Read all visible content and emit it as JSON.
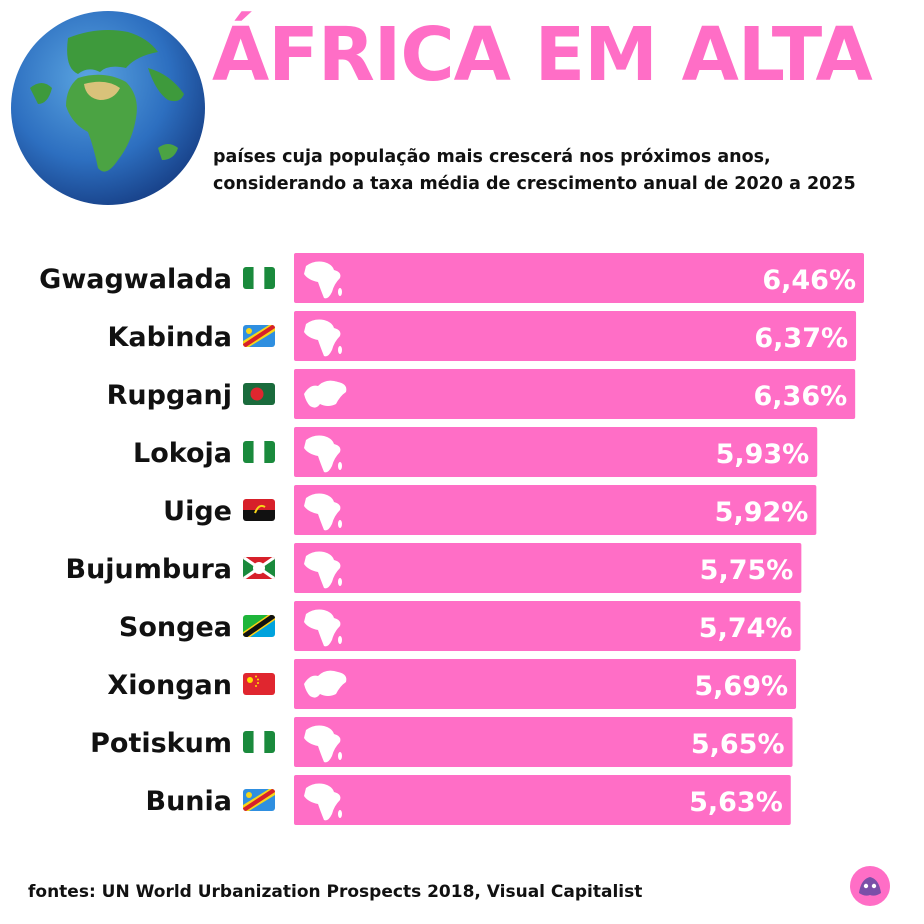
{
  "title": "ÁFRICA EM ALTA",
  "subtitle_lines": [
    "países cuja população mais crescerá nos próximos anos,",
    "considerando a taxa média de crescimento anual de 2020 a 2025"
  ],
  "source": "fontes: UN World Urbanization Prospects 2018, Visual Capitalist",
  "colors": {
    "accent": "#ff6ec6",
    "bar": "#ff6ec6",
    "text": "#111111",
    "value_text": "#ffffff"
  },
  "chart_data": {
    "type": "bar",
    "orientation": "horizontal",
    "categories": [
      "Gwagwalada",
      "Kabinda",
      "Rupganj",
      "Lokoja",
      "Uige",
      "Bujumbura",
      "Songea",
      "Xiongan",
      "Potiskum",
      "Bunia"
    ],
    "values": [
      6.46,
      6.37,
      6.36,
      5.93,
      5.92,
      5.75,
      5.74,
      5.69,
      5.65,
      5.63
    ],
    "value_labels": [
      "6,46%",
      "6,37%",
      "6,36%",
      "5,93%",
      "5,92%",
      "5,75%",
      "5,74%",
      "5,69%",
      "5,65%",
      "5,63%"
    ],
    "flags": [
      "nigeria",
      "dr-congo",
      "bangladesh",
      "nigeria",
      "angola",
      "burundi",
      "tanzania",
      "china",
      "nigeria",
      "dr-congo"
    ],
    "continent_icons": [
      "africa",
      "africa",
      "asia",
      "africa",
      "africa",
      "africa",
      "africa",
      "asia",
      "africa",
      "africa"
    ],
    "xlim": [
      0,
      6.46
    ]
  }
}
